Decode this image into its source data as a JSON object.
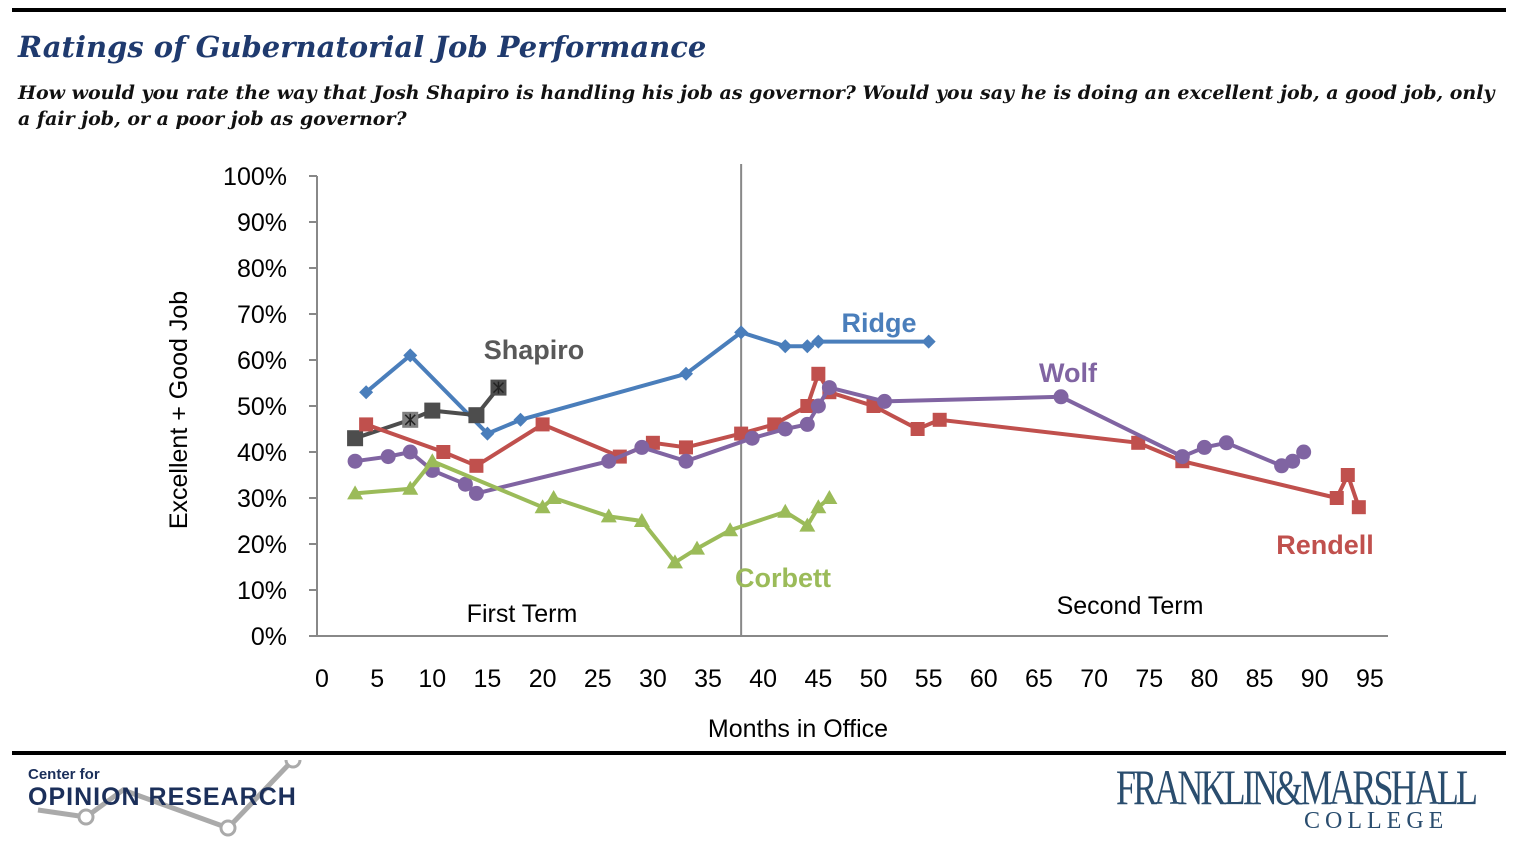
{
  "header": {
    "title": "Ratings of Gubernatorial Job Performance",
    "subtitle": "How would you rate the way that Josh Shapiro is handling his job as governor? Would you say he is doing an excellent job, a good job, only a fair job, or a poor job as governor?"
  },
  "chart_data": {
    "type": "line",
    "title": "",
    "xlabel": "Months in Office",
    "ylabel": "Excellent + Good Job",
    "xlim": [
      0,
      95
    ],
    "ylim": [
      0,
      100
    ],
    "xticks": [
      "0",
      "5",
      "10",
      "15",
      "20",
      "25",
      "30",
      "35",
      "40",
      "45",
      "50",
      "55",
      "60",
      "65",
      "70",
      "75",
      "80",
      "85",
      "90",
      "95"
    ],
    "yticks": [
      "0%",
      "10%",
      "20%",
      "30%",
      "40%",
      "50%",
      "60%",
      "70%",
      "80%",
      "90%",
      "100%"
    ],
    "grid": false,
    "annotations": [
      {
        "text": "First Term"
      },
      {
        "text": "Second Term"
      }
    ],
    "term_divider_month": 38,
    "series": [
      {
        "name": "Ridge",
        "color": "#4a7ebb",
        "marker": "diamond",
        "x": [
          4,
          8,
          15,
          18,
          33,
          38,
          42,
          44,
          45,
          55
        ],
        "y": [
          53,
          61,
          44,
          47,
          57,
          66,
          63,
          63,
          64,
          64
        ]
      },
      {
        "name": "Shapiro",
        "color": "#4d4d4d",
        "marker": "square",
        "x": [
          3,
          8,
          10,
          14,
          16
        ],
        "y": [
          43,
          47,
          49,
          48,
          54
        ]
      },
      {
        "name": "Rendell",
        "color": "#c0504d",
        "marker": "square",
        "x": [
          4,
          11,
          14,
          20,
          27,
          30,
          33,
          38,
          41,
          44,
          45,
          46,
          50,
          54,
          56,
          74,
          78,
          92,
          93,
          94
        ],
        "y": [
          46,
          40,
          37,
          46,
          39,
          42,
          41,
          44,
          46,
          50,
          57,
          53,
          50,
          45,
          47,
          42,
          38,
          30,
          35,
          28
        ]
      },
      {
        "name": "Wolf",
        "color": "#8064a2",
        "marker": "circle",
        "x": [
          3,
          6,
          8,
          10,
          13,
          14,
          26,
          29,
          33,
          39,
          42,
          44,
          45,
          46,
          51,
          67,
          78,
          80,
          82,
          87,
          88,
          89
        ],
        "y": [
          38,
          39,
          40,
          36,
          33,
          31,
          38,
          41,
          38,
          43,
          45,
          46,
          50,
          54,
          51,
          52,
          39,
          41,
          42,
          37,
          38,
          40
        ]
      },
      {
        "name": "Corbett",
        "color": "#9bbb59",
        "marker": "triangle",
        "x": [
          3,
          8,
          10,
          20,
          21,
          26,
          29,
          32,
          34,
          37,
          42,
          44,
          45,
          46
        ],
        "y": [
          31,
          32,
          38,
          28,
          30,
          26,
          25,
          16,
          19,
          23,
          27,
          24,
          28,
          30
        ]
      }
    ]
  },
  "footer": {
    "logo_left_small": "Center for",
    "logo_left_big": "OPINION RESEARCH",
    "logo_right_top": "FRANKLIN&MARSHALL",
    "logo_right_bottom": "COLLEGE"
  }
}
